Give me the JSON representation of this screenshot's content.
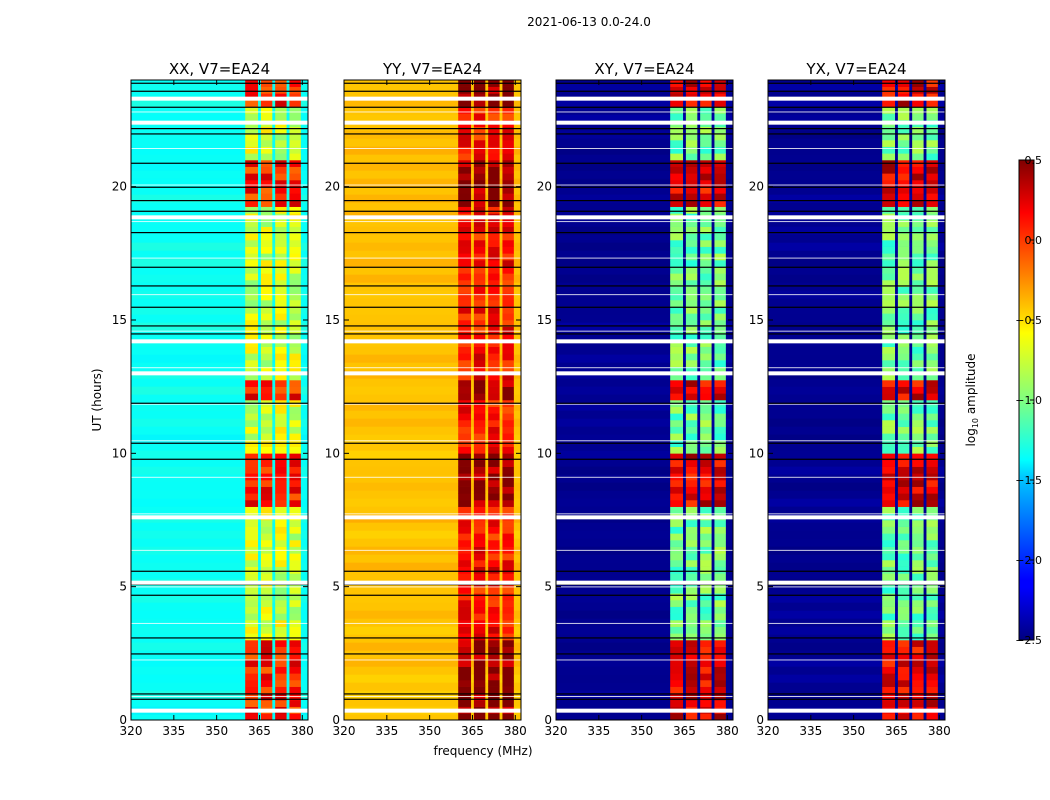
{
  "figure_title": "2021-06-13 0.0-24.0",
  "shared_xlabel": "frequency (MHz)",
  "shared_ylabel": "UT (hours)",
  "colorbar": {
    "label_prefix": "log",
    "label_sub": "10",
    "label_suffix": " amplitude",
    "range": [
      -2.5,
      0.5
    ],
    "ticks": [
      "0.5",
      "0.0",
      "−0.5",
      "−1.0",
      "−1.5",
      "−2.0",
      "−2.5"
    ],
    "tick_values": [
      0.5,
      0.0,
      -0.5,
      -1.0,
      -1.5,
      -2.0,
      -2.5
    ],
    "colormap": "jet"
  },
  "chart_data": [
    {
      "type": "heatmap",
      "title": "XX, V7=EA24",
      "xlabel": "",
      "ylabel": "UT (hours)",
      "xlim": [
        320,
        382
      ],
      "ylim": [
        0,
        24
      ],
      "xticks": [
        320,
        335,
        350,
        365,
        380
      ],
      "xtick_labels": [
        "320",
        "335",
        "350",
        "365",
        "380"
      ],
      "yticks": [
        0,
        5,
        10,
        15,
        20
      ],
      "ytick_labels": [
        "0",
        "5",
        "10",
        "15",
        "20"
      ],
      "background_level": -1.35,
      "band_level": -0.75,
      "hot_band_level": 0.05,
      "active_band_mhz": [
        [
          360,
          364.5
        ],
        [
          365.5,
          369.5
        ],
        [
          370.5,
          374.5
        ],
        [
          375.5,
          379.5
        ]
      ]
    },
    {
      "type": "heatmap",
      "title": "YY, V7=EA24",
      "xlabel": "",
      "ylabel": "",
      "xlim": [
        320,
        382
      ],
      "ylim": [
        0,
        24
      ],
      "xticks": [
        320,
        335,
        350,
        365,
        380
      ],
      "xtick_labels": [
        "320",
        "335",
        "350",
        "365",
        "380"
      ],
      "yticks": [
        0,
        5,
        10,
        15,
        20
      ],
      "ytick_labels": [
        "0",
        "5",
        "10",
        "15",
        "20"
      ],
      "background_level": -0.45,
      "band_level": 0.1,
      "hot_band_level": 0.45,
      "active_band_mhz": [
        [
          360,
          364.5
        ],
        [
          365.5,
          369.5
        ],
        [
          370.5,
          374.5
        ],
        [
          375.5,
          379.5
        ]
      ]
    },
    {
      "type": "heatmap",
      "title": "XY, V7=EA24",
      "xlabel": "",
      "ylabel": "",
      "xlim": [
        320,
        382
      ],
      "ylim": [
        0,
        24
      ],
      "xticks": [
        320,
        335,
        350,
        365,
        380
      ],
      "xtick_labels": [
        "320",
        "335",
        "350",
        "365",
        "380"
      ],
      "yticks": [
        0,
        5,
        10,
        15,
        20
      ],
      "ytick_labels": [
        "0",
        "5",
        "10",
        "15",
        "20"
      ],
      "background_level": -2.45,
      "band_level": -1.05,
      "hot_band_level": 0.2,
      "active_band_mhz": [
        [
          360,
          364.5
        ],
        [
          365.5,
          369.5
        ],
        [
          370.5,
          374.5
        ],
        [
          375.5,
          379.5
        ]
      ]
    },
    {
      "type": "heatmap",
      "title": "YX, V7=EA24",
      "xlabel": "",
      "ylabel": "",
      "xlim": [
        320,
        382
      ],
      "ylim": [
        0,
        24
      ],
      "xticks": [
        320,
        335,
        350,
        365,
        380
      ],
      "xtick_labels": [
        "320",
        "335",
        "350",
        "365",
        "380"
      ],
      "yticks": [
        0,
        5,
        10,
        15,
        20
      ],
      "ytick_labels": [
        "0",
        "5",
        "10",
        "15",
        "20"
      ],
      "background_level": -2.45,
      "band_level": -1.05,
      "hot_band_level": 0.2,
      "active_band_mhz": [
        [
          360,
          364.5
        ],
        [
          365.5,
          369.5
        ],
        [
          370.5,
          374.5
        ],
        [
          375.5,
          379.5
        ]
      ]
    }
  ],
  "shared_features": {
    "hot_time_ranges_ut": [
      [
        22.8,
        24.0
      ],
      [
        19.2,
        20.8
      ],
      [
        12.0,
        12.6
      ],
      [
        8.0,
        10.0
      ],
      [
        0.0,
        3.0
      ]
    ],
    "white_gap_times_ut": [
      23.3,
      22.4,
      18.85,
      14.2,
      13.0,
      7.6,
      5.15,
      0.35
    ],
    "black_line_times_ut": [
      23.9,
      23.6,
      23.0,
      22.2,
      22.0,
      20.9,
      20.0,
      19.5,
      19.1,
      18.3,
      17.0,
      16.3,
      15.5,
      14.8,
      14.5,
      11.9,
      10.4,
      9.8,
      5.6,
      5.2,
      5.1,
      4.7,
      3.1,
      2.5,
      1.0,
      0.8
    ]
  }
}
